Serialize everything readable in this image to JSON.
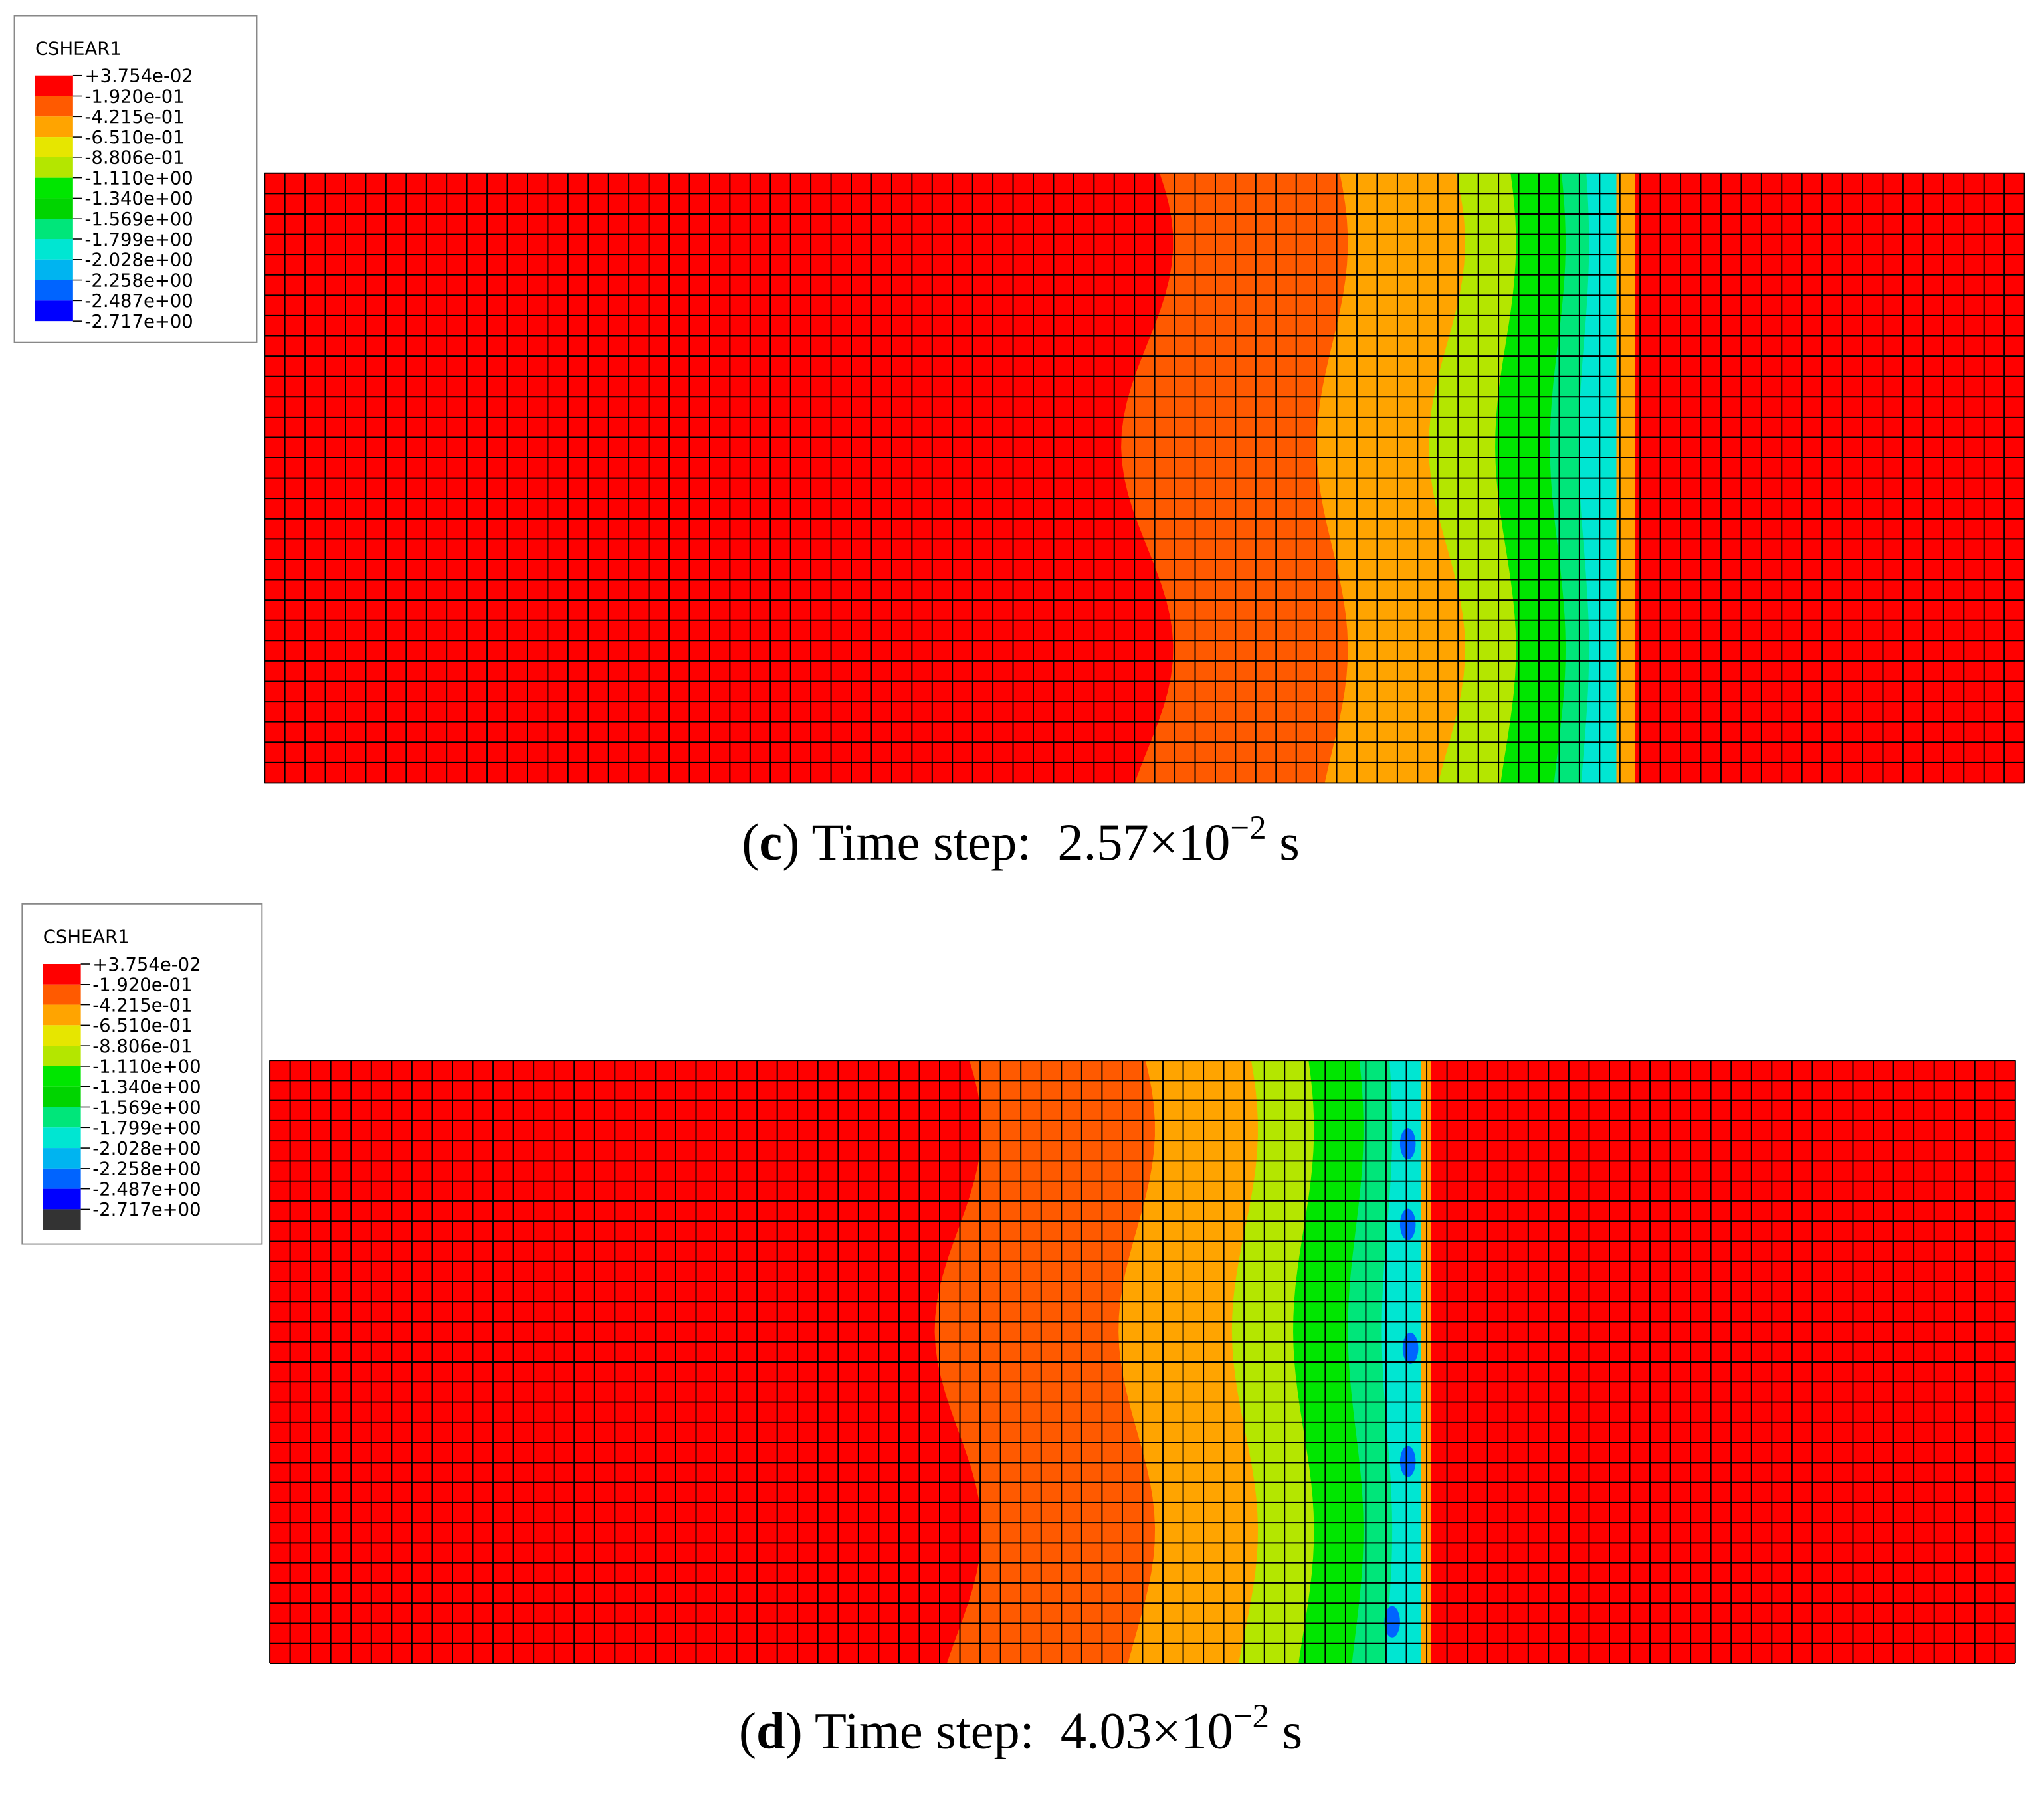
{
  "panels": [
    {
      "legend": {
        "title": "CSHEAR1",
        "labels": [
          "+3.754e-02",
          "-1.920e-01",
          "-4.215e-01",
          "-6.510e-01",
          "-8.806e-01",
          "-1.110e+00",
          "-1.340e+00",
          "-1.569e+00",
          "-1.799e+00",
          "-2.028e+00",
          "-2.258e+00",
          "-2.487e+00",
          "-2.717e+00"
        ],
        "colors": [
          "#ff0000",
          "#ff5a00",
          "#ffa400",
          "#e6e600",
          "#b4e600",
          "#00e600",
          "#00d400",
          "#00e67a",
          "#00e6d2",
          "#00b4f0",
          "#0064ff",
          "#0000ff"
        ]
      },
      "caption": {
        "open": "(",
        "letter": "c",
        "text": ") Time step:",
        "mantissa": "2.57×10",
        "exponent": "−2",
        "unit": "s"
      }
    },
    {
      "legend": {
        "title": "CSHEAR1",
        "labels": [
          "+3.754e-02",
          "-1.920e-01",
          "-4.215e-01",
          "-6.510e-01",
          "-8.806e-01",
          "-1.110e+00",
          "-1.340e+00",
          "-1.569e+00",
          "-1.799e+00",
          "-2.028e+00",
          "-2.258e+00",
          "-2.487e+00",
          "-2.717e+00"
        ],
        "colors": [
          "#ff0000",
          "#ff5a00",
          "#ffa400",
          "#e6e600",
          "#b4e600",
          "#00e600",
          "#00d400",
          "#00e67a",
          "#00e6d2",
          "#00b4f0",
          "#0064ff",
          "#0000ff",
          "#333333"
        ]
      },
      "caption": {
        "open": "(",
        "letter": "d",
        "text": ") Time step:",
        "mantissa": "4.03×10",
        "exponent": "−2",
        "unit": "s"
      }
    }
  ]
}
